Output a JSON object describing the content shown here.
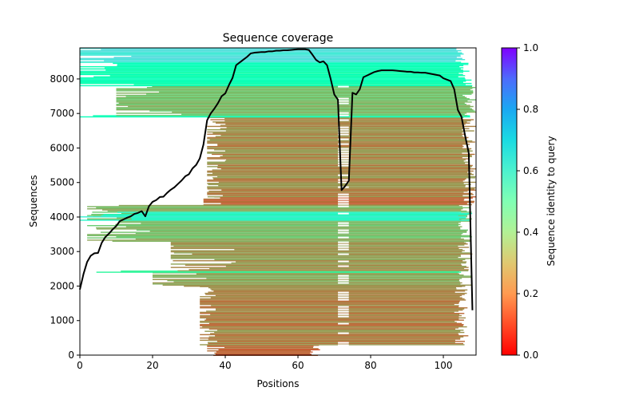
{
  "chart_data": {
    "type": "heatmap",
    "title": "Sequence coverage",
    "xlabel": "Positions",
    "ylabel": "Sequences",
    "xlim": [
      0,
      109
    ],
    "ylim": [
      0,
      8900
    ],
    "xticks": [
      0,
      20,
      40,
      60,
      80,
      100
    ],
    "yticks": [
      0,
      1000,
      2000,
      3000,
      4000,
      5000,
      6000,
      7000,
      8000
    ],
    "grid": false,
    "colorbar": {
      "label": "Sequence identity to query",
      "colormap": "rainbow_r",
      "range": [
        0.0,
        1.0
      ],
      "ticks": [
        "0.0",
        "0.2",
        "0.4",
        "0.6",
        "0.8",
        "1.0"
      ],
      "tick_values": [
        0.0,
        0.2,
        0.4,
        0.6,
        0.8,
        1.0
      ]
    },
    "bands": [
      {
        "y0": 0,
        "y1": 300,
        "identity": 0.12,
        "x_start": 35,
        "x_end": 67
      },
      {
        "y0": 300,
        "y1": 2000,
        "identity": 0.17,
        "x_start": 33,
        "x_end": 107
      },
      {
        "y0": 2000,
        "y1": 2400,
        "identity": 0.22,
        "x_start": 20,
        "x_end": 108
      },
      {
        "y0": 2400,
        "y1": 2450,
        "identity": 0.42,
        "x_start": 0,
        "x_end": 108
      },
      {
        "y0": 2450,
        "y1": 3300,
        "identity": 0.2,
        "x_start": 25,
        "x_end": 108
      },
      {
        "y0": 3300,
        "y1": 4350,
        "identity": 0.26,
        "x_start": 2,
        "x_end": 108
      },
      {
        "y0": 3900,
        "y1": 4150,
        "identity": 0.58,
        "x_start": 0,
        "x_end": 108
      },
      {
        "y0": 4350,
        "y1": 4600,
        "identity": 0.13,
        "x_start": 34,
        "x_end": 109
      },
      {
        "y0": 4600,
        "y1": 6900,
        "identity": 0.18,
        "x_start": 35,
        "x_end": 109
      },
      {
        "y0": 6900,
        "y1": 6950,
        "identity": 0.48,
        "x_start": 0,
        "x_end": 109
      },
      {
        "y0": 6950,
        "y1": 7800,
        "identity": 0.27,
        "x_start": 10,
        "x_end": 109
      },
      {
        "y0": 7800,
        "y1": 8500,
        "identity": 0.5,
        "x_start": 0,
        "x_end": 108
      },
      {
        "y0": 8500,
        "y1": 8900,
        "identity": 0.66,
        "x_start": 0,
        "x_end": 107
      }
    ],
    "gap_columns": [
      [
        71,
        74
      ]
    ],
    "series": [
      {
        "name": "coverage",
        "color": "#000000",
        "x": [
          0,
          1,
          2,
          3,
          4,
          5,
          6,
          7,
          8,
          9,
          10,
          11,
          12,
          13,
          14,
          15,
          16,
          17,
          18,
          19,
          20,
          21,
          22,
          23,
          24,
          25,
          26,
          27,
          28,
          29,
          30,
          31,
          32,
          33,
          34,
          35,
          36,
          37,
          38,
          39,
          40,
          41,
          42,
          43,
          44,
          45,
          46,
          47,
          48,
          49,
          50,
          51,
          52,
          53,
          54,
          55,
          56,
          57,
          58,
          59,
          60,
          61,
          62,
          63,
          64,
          65,
          66,
          67,
          68,
          69,
          70,
          71,
          72,
          73,
          74,
          75,
          76,
          77,
          78,
          79,
          80,
          81,
          82,
          83,
          84,
          85,
          86,
          87,
          88,
          89,
          90,
          91,
          92,
          93,
          94,
          95,
          96,
          97,
          98,
          99,
          100,
          101,
          102,
          103,
          104,
          105,
          106,
          107,
          108
        ],
        "y": [
          1900,
          2350,
          2700,
          2880,
          2950,
          2960,
          3250,
          3420,
          3520,
          3640,
          3740,
          3880,
          3930,
          3980,
          4020,
          4090,
          4120,
          4170,
          4020,
          4310,
          4440,
          4490,
          4580,
          4590,
          4700,
          4790,
          4860,
          4960,
          5060,
          5180,
          5240,
          5410,
          5510,
          5700,
          6100,
          6800,
          7000,
          7140,
          7300,
          7500,
          7580,
          7820,
          8030,
          8400,
          8480,
          8560,
          8640,
          8740,
          8760,
          8770,
          8780,
          8780,
          8800,
          8800,
          8820,
          8820,
          8830,
          8830,
          8840,
          8850,
          8860,
          8860,
          8860,
          8840,
          8700,
          8550,
          8480,
          8510,
          8400,
          8000,
          7550,
          7400,
          4780,
          4900,
          5050,
          7600,
          7550,
          7700,
          8050,
          8100,
          8150,
          8200,
          8230,
          8250,
          8250,
          8250,
          8250,
          8240,
          8230,
          8220,
          8210,
          8210,
          8190,
          8190,
          8180,
          8180,
          8160,
          8140,
          8120,
          8100,
          8020,
          7980,
          7940,
          7700,
          7100,
          6900,
          6350,
          5850,
          1300
        ]
      }
    ]
  }
}
